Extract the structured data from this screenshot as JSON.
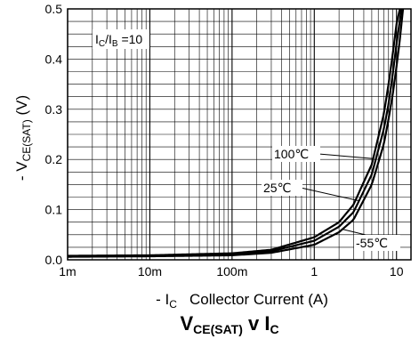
{
  "chart_data": {
    "type": "line",
    "title": {
      "main": "V",
      "sub": "CE(SAT)",
      "mid": " v I",
      "sub2": "C"
    },
    "xlabel": {
      "prefix": "- I",
      "sub": "C",
      "rest": "   Collector Current (A)"
    },
    "ylabel": {
      "prefix": "- V",
      "sub": "CE(SAT)",
      "rest": "  (V)"
    },
    "x_scale": "log",
    "xlim": [
      0.001,
      15
    ],
    "ylim": [
      0,
      0.5
    ],
    "x_ticks": [
      {
        "value": 0.001,
        "label": "1m"
      },
      {
        "value": 0.01,
        "label": "10m"
      },
      {
        "value": 0.1,
        "label": "100m"
      },
      {
        "value": 1,
        "label": "1"
      },
      {
        "value": 10,
        "label": "10"
      }
    ],
    "y_ticks": [
      {
        "value": 0.0,
        "label": "0.0"
      },
      {
        "value": 0.1,
        "label": "0.1"
      },
      {
        "value": 0.2,
        "label": "0.2"
      },
      {
        "value": 0.3,
        "label": "0.3"
      },
      {
        "value": 0.4,
        "label": "0.4"
      },
      {
        "value": 0.5,
        "label": "0.5"
      }
    ],
    "grid": true,
    "condition": {
      "prefix": "I",
      "sub1": "C",
      "mid": "/I",
      "sub2": "B",
      "rest": " =10"
    },
    "series": [
      {
        "name": "100℃",
        "x": [
          0.001,
          0.01,
          0.1,
          0.3,
          1,
          2,
          3,
          5,
          7,
          8,
          9,
          10,
          11
        ],
        "y": [
          0.008,
          0.009,
          0.013,
          0.02,
          0.045,
          0.075,
          0.11,
          0.19,
          0.29,
          0.35,
          0.41,
          0.47,
          0.5
        ]
      },
      {
        "name": "25℃",
        "x": [
          0.001,
          0.01,
          0.1,
          0.3,
          1,
          2,
          3,
          5,
          7,
          8,
          9,
          10,
          11.5
        ],
        "y": [
          0.007,
          0.008,
          0.011,
          0.017,
          0.038,
          0.066,
          0.095,
          0.17,
          0.26,
          0.31,
          0.37,
          0.43,
          0.5
        ]
      },
      {
        "name": "-55℃",
        "x": [
          0.001,
          0.01,
          0.1,
          0.3,
          1,
          2,
          3,
          5,
          7,
          8,
          9,
          10,
          11,
          12
        ],
        "y": [
          0.006,
          0.007,
          0.009,
          0.014,
          0.03,
          0.055,
          0.08,
          0.15,
          0.23,
          0.28,
          0.33,
          0.385,
          0.44,
          0.5
        ]
      }
    ],
    "annotations": [
      {
        "text": "100℃",
        "target_series": 0,
        "target_x": 5.2
      },
      {
        "text": "25℃",
        "target_series": 1,
        "target_x": 3.5
      },
      {
        "text": "-55℃",
        "target_series": 2,
        "target_x": 2.2
      }
    ]
  }
}
